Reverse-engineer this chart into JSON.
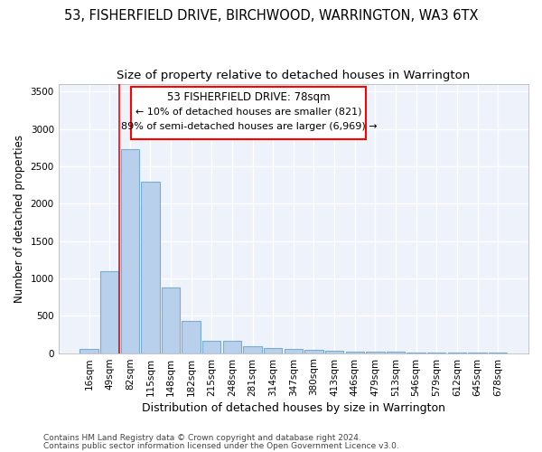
{
  "title": "53, FISHERFIELD DRIVE, BIRCHWOOD, WARRINGTON, WA3 6TX",
  "subtitle": "Size of property relative to detached houses in Warrington",
  "xlabel": "Distribution of detached houses by size in Warrington",
  "ylabel": "Number of detached properties",
  "categories": [
    "16sqm",
    "49sqm",
    "82sqm",
    "115sqm",
    "148sqm",
    "182sqm",
    "215sqm",
    "248sqm",
    "281sqm",
    "314sqm",
    "347sqm",
    "380sqm",
    "413sqm",
    "446sqm",
    "479sqm",
    "513sqm",
    "546sqm",
    "579sqm",
    "612sqm",
    "645sqm",
    "678sqm"
  ],
  "values": [
    55,
    1100,
    2730,
    2290,
    875,
    430,
    170,
    165,
    90,
    65,
    50,
    40,
    35,
    20,
    20,
    15,
    10,
    5,
    5,
    5,
    5
  ],
  "bar_color": "#b8d0eb",
  "bar_edgecolor": "#7aadd4",
  "bar_linewidth": 0.8,
  "annotation_title": "53 FISHERFIELD DRIVE: 78sqm",
  "annotation_line1": "← 10% of detached houses are smaller (821)",
  "annotation_line2": "89% of semi-detached houses are larger (6,969) →",
  "ylim": [
    0,
    3600
  ],
  "yticks": [
    0,
    500,
    1000,
    1500,
    2000,
    2500,
    3000,
    3500
  ],
  "background_color": "#eef2fb",
  "grid_color": "#ffffff",
  "footer1": "Contains HM Land Registry data © Crown copyright and database right 2024.",
  "footer2": "Contains public sector information licensed under the Open Government Licence v3.0.",
  "title_fontsize": 10.5,
  "subtitle_fontsize": 9.5,
  "xlabel_fontsize": 9,
  "ylabel_fontsize": 8.5,
  "tick_fontsize": 7.5,
  "footer_fontsize": 6.5,
  "annot_title_fontsize": 8.5,
  "annot_text_fontsize": 8
}
